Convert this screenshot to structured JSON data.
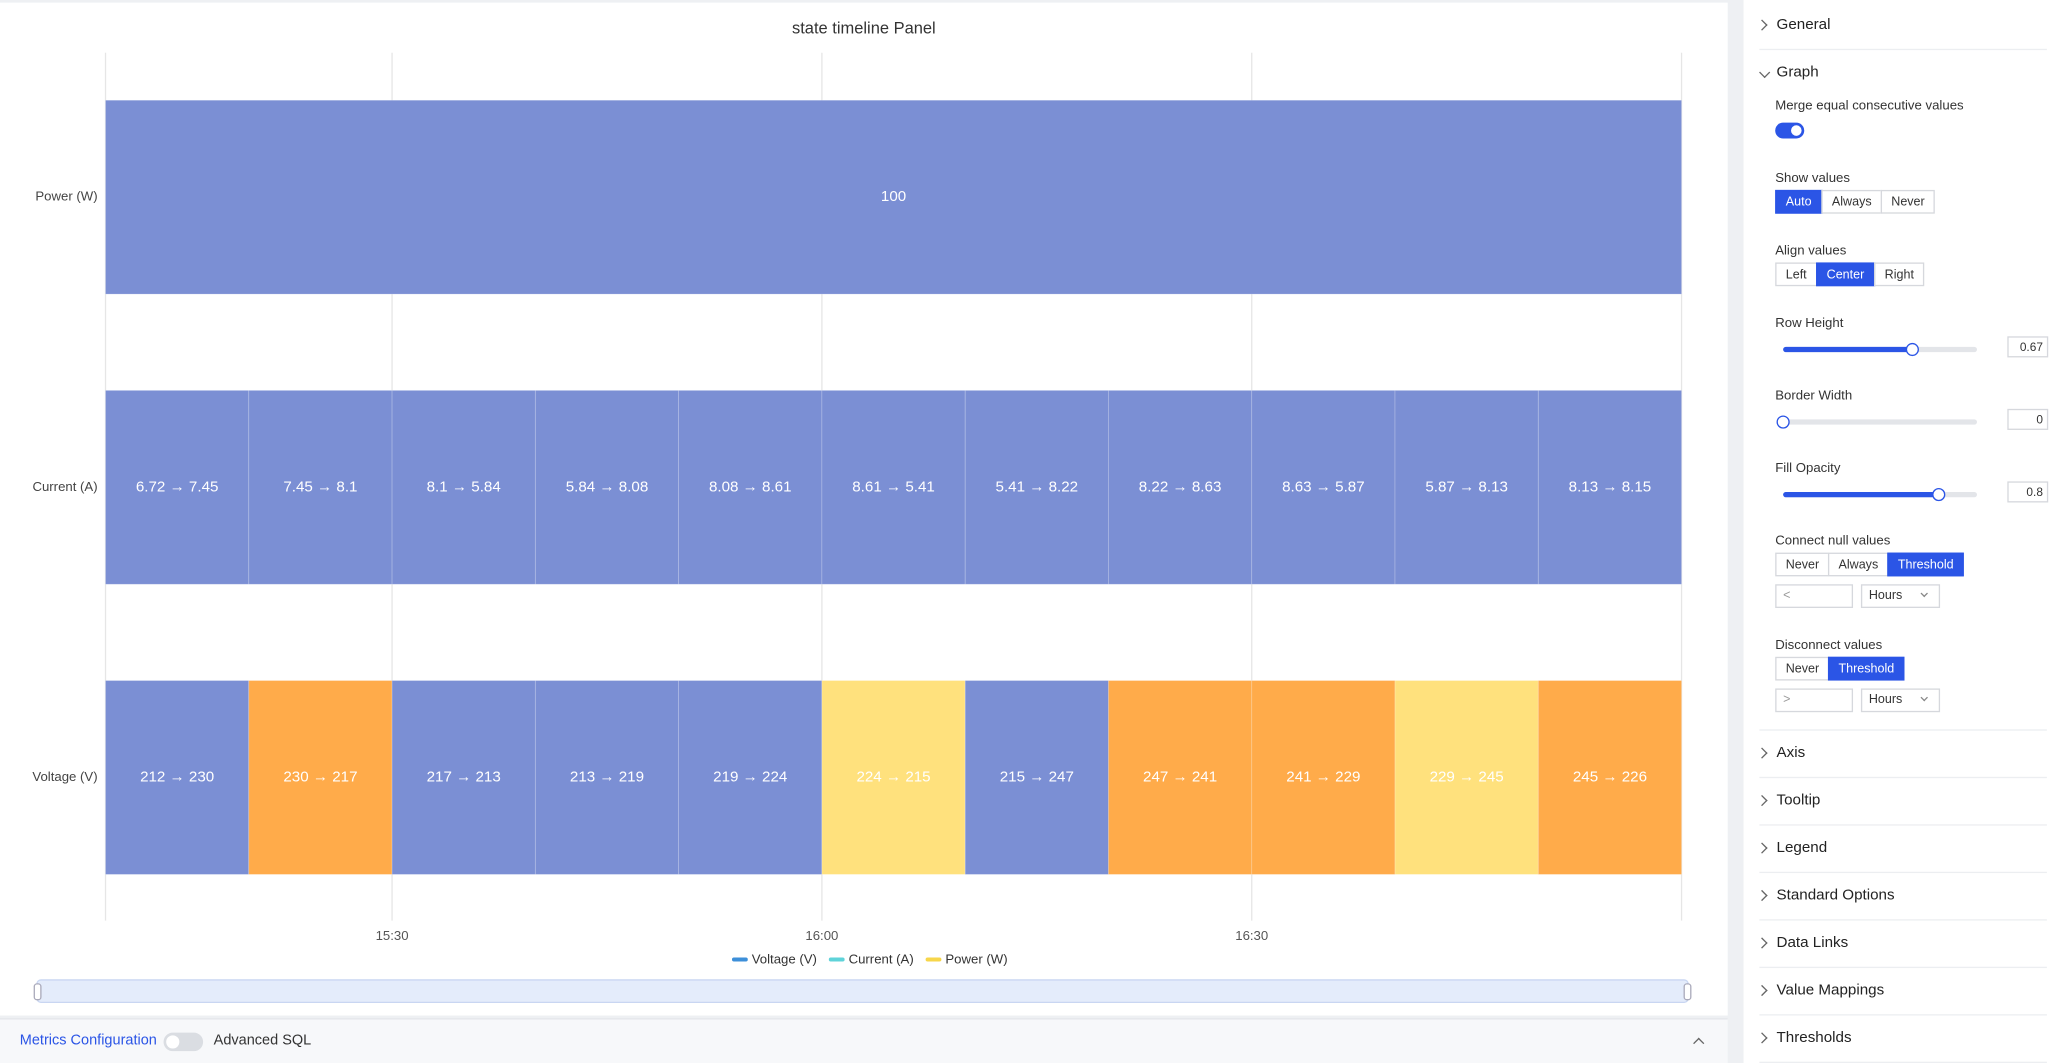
{
  "chart_data": {
    "type": "state-timeline",
    "title": "state timeline Panel",
    "xlim": [
      910,
      1020
    ],
    "xticks": [
      {
        "value": 930,
        "label": "15:30"
      },
      {
        "value": 960,
        "label": "16:00"
      },
      {
        "value": 990,
        "label": "16:30"
      }
    ],
    "grid": true,
    "rows": [
      {
        "name": "Power (W)",
        "segments": [
          {
            "start": 910,
            "end": 1020,
            "label": "100",
            "color": "#7b8fd4"
          }
        ]
      },
      {
        "name": "Current (A)",
        "segments": [
          {
            "start": 910,
            "end": 920,
            "label": "6.72 → 7.45",
            "color": "#7b8fd4"
          },
          {
            "start": 920,
            "end": 930,
            "label": "7.45 → 8.1",
            "color": "#7b8fd4"
          },
          {
            "start": 930,
            "end": 940,
            "label": "8.1 → 5.84",
            "color": "#7b8fd4"
          },
          {
            "start": 940,
            "end": 950,
            "label": "5.84 → 8.08",
            "color": "#7b8fd4"
          },
          {
            "start": 950,
            "end": 960,
            "label": "8.08 → 8.61",
            "color": "#7b8fd4"
          },
          {
            "start": 960,
            "end": 970,
            "label": "8.61 → 5.41",
            "color": "#7b8fd4"
          },
          {
            "start": 970,
            "end": 980,
            "label": "5.41 → 8.22",
            "color": "#7b8fd4"
          },
          {
            "start": 980,
            "end": 990,
            "label": "8.22 → 8.63",
            "color": "#7b8fd4"
          },
          {
            "start": 990,
            "end": 1000,
            "label": "8.63 → 5.87",
            "color": "#7b8fd4"
          },
          {
            "start": 1000,
            "end": 1010,
            "label": "5.87 → 8.13",
            "color": "#7b8fd4"
          },
          {
            "start": 1010,
            "end": 1020,
            "label": "8.13 → 8.15",
            "color": "#7b8fd4"
          }
        ]
      },
      {
        "name": "Voltage (V)",
        "segments": [
          {
            "start": 910,
            "end": 920,
            "label": "212 → 230",
            "color": "#7b8fd4"
          },
          {
            "start": 920,
            "end": 930,
            "label": "230 → 217",
            "color": "#ffab4a"
          },
          {
            "start": 930,
            "end": 940,
            "label": "217 → 213",
            "color": "#7b8fd4"
          },
          {
            "start": 940,
            "end": 950,
            "label": "213 → 219",
            "color": "#7b8fd4"
          },
          {
            "start": 950,
            "end": 960,
            "label": "219 → 224",
            "color": "#7b8fd4"
          },
          {
            "start": 960,
            "end": 970,
            "label": "224 → 215",
            "color": "#ffe17d"
          },
          {
            "start": 970,
            "end": 980,
            "label": "215 → 247",
            "color": "#7b8fd4"
          },
          {
            "start": 980,
            "end": 990,
            "label": "247 → 241",
            "color": "#ffab4a"
          },
          {
            "start": 990,
            "end": 1000,
            "label": "241 → 229",
            "color": "#ffab4a"
          },
          {
            "start": 1000,
            "end": 1010,
            "label": "229 → 245",
            "color": "#ffe17d"
          },
          {
            "start": 1010,
            "end": 1020,
            "label": "245 → 226",
            "color": "#ffab4a"
          }
        ]
      }
    ],
    "legend": [
      {
        "name": "Voltage (V)",
        "color": "#3d8fd9"
      },
      {
        "name": "Current (A)",
        "color": "#5fd3d9"
      },
      {
        "name": "Power (W)",
        "color": "#f7d64a"
      }
    ]
  },
  "footer": {
    "link": "Metrics Configuration",
    "toggle_label": "Advanced SQL"
  },
  "settings": {
    "sections": [
      {
        "title": "General"
      },
      {
        "title": "Graph",
        "fields": [
          {
            "kind": "toggle",
            "label": "Merge equal consecutive values",
            "on": true
          },
          {
            "kind": "options",
            "label": "Show values",
            "options": [
              "Auto",
              "Always",
              "Never"
            ],
            "selected": 0
          },
          {
            "kind": "options",
            "label": "Align values",
            "options": [
              "Left",
              "Center",
              "Right"
            ],
            "selected": 1
          },
          {
            "kind": "slider",
            "label": "Row Height",
            "value": 0.67
          },
          {
            "kind": "slider",
            "label": "Border Width",
            "value": 0
          },
          {
            "kind": "slider",
            "label": "Fill Opacity",
            "value": 0.8
          },
          {
            "kind": "threshold",
            "label": "Connect null values",
            "options": [
              "Never",
              "Always",
              "Threshold"
            ],
            "selected": 2,
            "placeholder": "<",
            "unit": "Hours"
          },
          {
            "kind": "threshold",
            "label": "Disconnect values",
            "options": [
              "Never",
              "Threshold"
            ],
            "selected": 1,
            "placeholder": ">",
            "unit": "Hours"
          }
        ]
      },
      {
        "title": "Axis"
      },
      {
        "title": "Tooltip"
      },
      {
        "title": "Legend"
      },
      {
        "title": "Standard Options"
      },
      {
        "title": "Data Links"
      },
      {
        "title": "Value Mappings"
      },
      {
        "title": "Thresholds"
      }
    ]
  }
}
